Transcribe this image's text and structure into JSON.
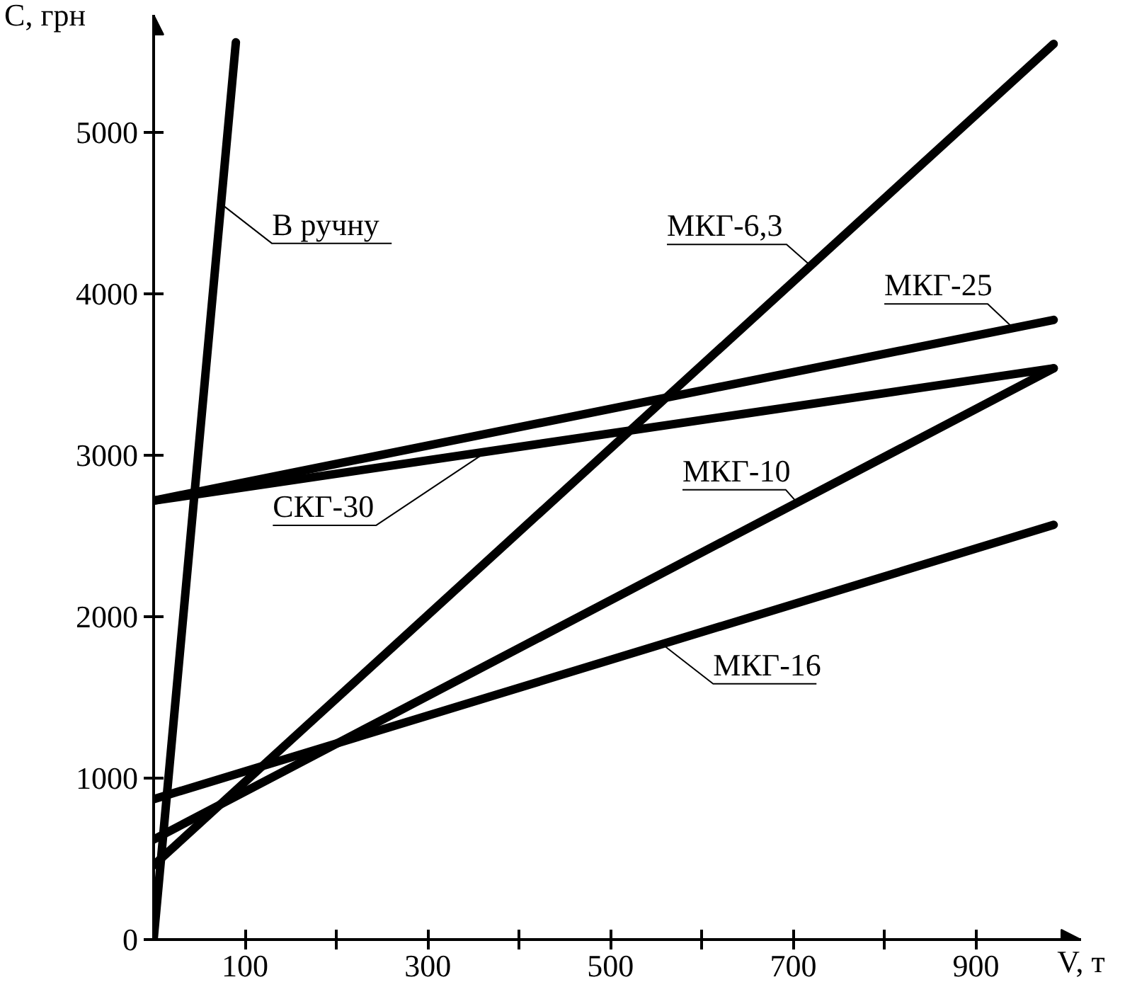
{
  "chart_data": {
    "type": "line",
    "ylabel": "C, грн",
    "xlabel": "V, т",
    "xlim": [
      0,
      1015
    ],
    "ylim": [
      0,
      5730
    ],
    "xticks": [
      {
        "value": 100,
        "label": "100"
      },
      {
        "value": 200,
        "label": null
      },
      {
        "value": 300,
        "label": "300"
      },
      {
        "value": 400,
        "label": null
      },
      {
        "value": 500,
        "label": "500"
      },
      {
        "value": 600,
        "label": null
      },
      {
        "value": 700,
        "label": "700"
      },
      {
        "value": 800,
        "label": null
      },
      {
        "value": 900,
        "label": "900"
      }
    ],
    "yticks": [
      0,
      1000,
      2000,
      3000,
      4000,
      5000
    ],
    "grid": false,
    "line_style": "solid",
    "series": [
      {
        "name": "В ручну",
        "color": "#000000",
        "x": [
          0,
          90
        ],
        "values": [
          0,
          5560
        ]
      },
      {
        "name": "МКГ-6,3",
        "color": "#000000",
        "x": [
          0,
          985
        ],
        "values": [
          460,
          5550
        ]
      },
      {
        "name": "МКГ-25",
        "color": "#000000",
        "x": [
          0,
          985
        ],
        "values": [
          2720,
          3840
        ]
      },
      {
        "name": "МКГ-10",
        "color": "#000000",
        "x": [
          0,
          985
        ],
        "values": [
          620,
          3540
        ]
      },
      {
        "name": "СКГ-30",
        "color": "#000000",
        "x": [
          0,
          985
        ],
        "values": [
          2720,
          3540
        ]
      },
      {
        "name": "МКГ-16",
        "color": "#000000",
        "x": [
          0,
          985
        ],
        "values": [
          870,
          2570
        ]
      }
    ]
  }
}
